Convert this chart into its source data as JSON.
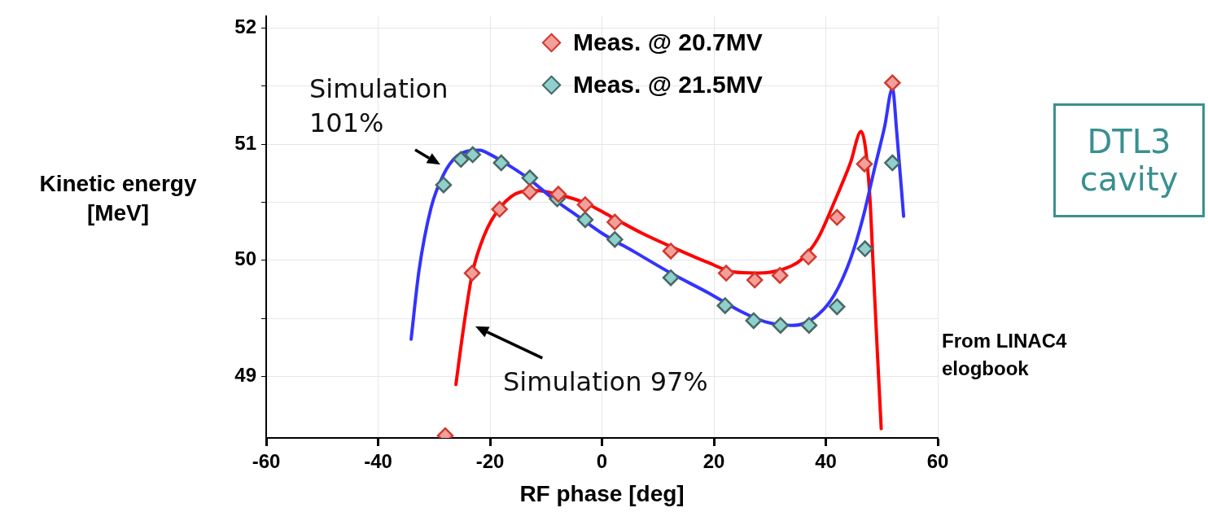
{
  "chart_data": {
    "type": "line",
    "xlabel": "RF phase [deg]",
    "ylabel": "Kinetic energy [MeV]",
    "xlim": [
      -60,
      60
    ],
    "xticks": [
      -60,
      -40,
      -20,
      0,
      20,
      40,
      60
    ],
    "ylim": [
      48.47,
      52.1
    ],
    "yticks": [
      49,
      {
        "value": 49.5,
        "label": null
      },
      50,
      {
        "value": 50.5,
        "label": null
      },
      51,
      {
        "value": 51.5,
        "label": null
      },
      52
    ],
    "grid": true,
    "legend": "top",
    "marker": "none",
    "line_style": "solid",
    "series": [
      {
        "name": "Simulation 101%",
        "color": "#3333ff",
        "x": [
          -34.1,
          -32.7,
          -30.5,
          -28.3,
          -26.1,
          -21.8,
          -20.3,
          -16.7,
          -13,
          -8.7,
          -4.3,
          0.1,
          5.9,
          12.3,
          19,
          24.8,
          29.2,
          33.9,
          35.7,
          38.6,
          41.5,
          44.4,
          46.6,
          48.8,
          50.5,
          51.9,
          52.7,
          53.9
        ],
        "values": [
          49.32,
          49.91,
          50.46,
          50.74,
          50.89,
          50.95,
          50.92,
          50.82,
          50.7,
          50.53,
          50.38,
          50.23,
          50.07,
          49.89,
          49.72,
          49.56,
          49.47,
          49.44,
          49.45,
          49.53,
          49.7,
          50.01,
          50.36,
          50.81,
          51.15,
          51.48,
          51.09,
          50.38
        ]
      },
      {
        "name": "Simulation 97%",
        "color": "#ff0000",
        "x": [
          -26.1,
          -24.7,
          -23.2,
          -21,
          -18.1,
          -14.5,
          -11.6,
          -7.2,
          -2.8,
          1.5,
          7.3,
          13.2,
          19,
          23.4,
          27.7,
          32.1,
          35.7,
          38.6,
          41.5,
          44.4,
          46.3,
          47.8,
          48.5,
          49.2,
          49.9
        ],
        "values": [
          48.93,
          49.43,
          49.88,
          50.22,
          50.46,
          50.59,
          50.6,
          50.56,
          50.49,
          50.38,
          50.23,
          50.1,
          49.98,
          49.9,
          49.89,
          49.92,
          50.01,
          50.19,
          50.5,
          50.84,
          51.11,
          50.6,
          49.91,
          49.22,
          48.55
        ]
      },
      {
        "type": "scatter",
        "name": "Meas. @ 20.7MV",
        "color": "#f4a09a",
        "marker": "diamond",
        "x": [
          -28,
          -23.2,
          -18.3,
          -12.9,
          -7.8,
          -3,
          2.3,
          12.3,
          22.2,
          27.3,
          31.8,
          36.9,
          42,
          46.9,
          51.9
        ],
        "values": [
          48.49,
          49.89,
          50.44,
          50.59,
          50.57,
          50.48,
          50.33,
          50.08,
          49.89,
          49.83,
          49.87,
          50.03,
          50.37,
          50.83,
          51.53
        ]
      },
      {
        "type": "scatter",
        "name": "Meas. @ 21.5MV",
        "color": "#8fd0cc",
        "marker": "diamond",
        "x": [
          -28.3,
          -25.2,
          -23.1,
          -18,
          -12.9,
          -8,
          -3,
          2.3,
          12.3,
          22,
          27.1,
          31.9,
          37,
          42,
          47,
          51.9
        ],
        "values": [
          50.65,
          50.87,
          50.91,
          50.84,
          50.71,
          50.53,
          50.35,
          50.18,
          49.85,
          49.61,
          49.48,
          49.44,
          49.44,
          49.6,
          50.1,
          50.84
        ]
      }
    ],
    "annotations": [
      "DTL3 cavity",
      "From LINAC4 elogbook"
    ]
  }
}
